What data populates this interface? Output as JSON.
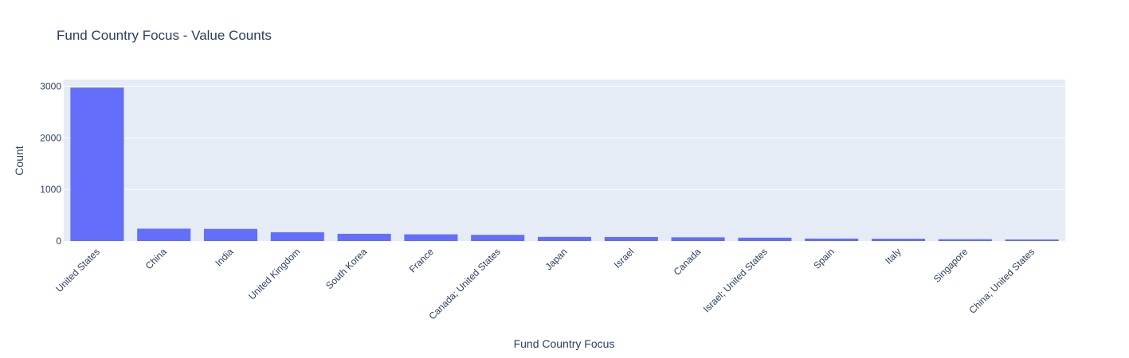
{
  "chart_data": {
    "type": "bar",
    "title": "Fund Country Focus - Value Counts",
    "xlabel": "Fund Country Focus",
    "ylabel": "Count",
    "categories": [
      "United States",
      "China",
      "India",
      "United Kingdom",
      "South Korea",
      "France",
      "Canada; United States",
      "Japan",
      "Israel",
      "Canada",
      "Israel; United States",
      "Spain",
      "Italy",
      "Singapore",
      "China; United States"
    ],
    "values": [
      2975,
      240,
      235,
      170,
      140,
      130,
      120,
      80,
      78,
      72,
      65,
      48,
      45,
      35,
      30
    ],
    "ylim": [
      0,
      3000
    ],
    "yticks": [
      0,
      1000,
      2000,
      3000
    ],
    "ytick_labels": [
      "0",
      "1000",
      "2000",
      "3000"
    ],
    "grid": true,
    "colors": {
      "bar": "#636efa",
      "plot_bg": "#e5ecf6",
      "grid": "#ffffff",
      "text": "#2a3f5f"
    }
  }
}
